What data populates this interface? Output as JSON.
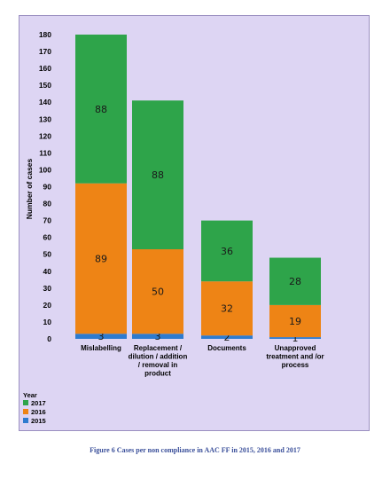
{
  "chart_data": {
    "type": "bar",
    "stacked": true,
    "categories": [
      "Mislabelling",
      "Replacement / dilution / addition / removal in product",
      "Documents",
      "Unapproved treatment and /or process"
    ],
    "category_label_lines": [
      [
        "Mislabelling"
      ],
      [
        "Replacement /",
        "dilution / addition",
        "/ removal in",
        "product"
      ],
      [
        "Documents"
      ],
      [
        "Unapproved",
        "treatment and /or",
        "process"
      ]
    ],
    "series": [
      {
        "name": "2015",
        "color": "#2e7bcf",
        "values": [
          3,
          3,
          2,
          1
        ]
      },
      {
        "name": "2016",
        "color": "#ee8415",
        "values": [
          89,
          50,
          32,
          19
        ]
      },
      {
        "name": "2017",
        "color": "#2ea44a",
        "values": [
          88,
          88,
          36,
          28
        ]
      }
    ],
    "data_labels": {
      "2015": [
        "3",
        "3",
        "2",
        "1"
      ],
      "2016": [
        "89",
        "50",
        "32",
        "19"
      ],
      "2017": [
        "88",
        "88",
        "36",
        "28"
      ]
    },
    "ylabel": "Number of cases",
    "ylim": [
      0,
      180
    ],
    "yticks": [
      0,
      10,
      20,
      30,
      40,
      50,
      60,
      70,
      80,
      90,
      100,
      110,
      120,
      130,
      140,
      150,
      160,
      170,
      180
    ],
    "grid": false,
    "legend": {
      "title": "Year",
      "placement": "bottom-left",
      "entries": [
        {
          "name": "2017",
          "color": "#2ea44a"
        },
        {
          "name": "2016",
          "color": "#ee8415"
        },
        {
          "name": "2015",
          "color": "#2e7bcf"
        }
      ]
    }
  },
  "caption": "Figure 6   Cases per non compliance in AAC FF in 2015, 2016 and 2017"
}
